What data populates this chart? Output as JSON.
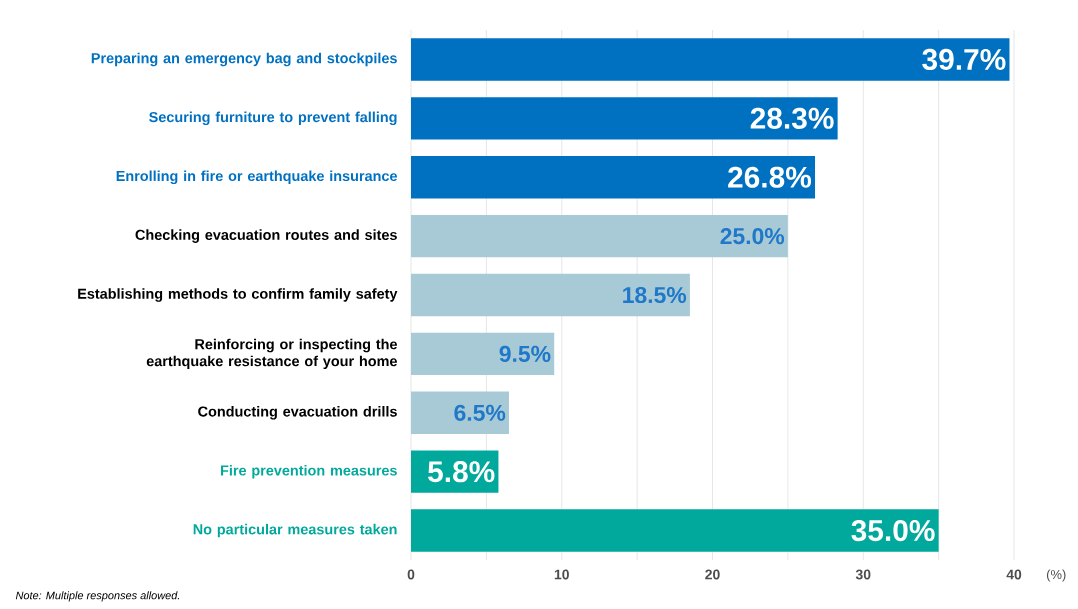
{
  "chart_data": {
    "type": "bar",
    "orientation": "horizontal",
    "xlabel": "(%)",
    "categories": [
      "Preparing an emergency bag and stockpiles",
      "Securing furniture to prevent falling",
      "Enrolling in fire or earthquake insurance",
      "Checking evacuation routes and sites",
      "Establishing methods to confirm family safety",
      "Reinforcing or inspecting the earthquake resistance of your home",
      "Conducting evacuation drills",
      "Fire prevention measures",
      "No particular measures taken"
    ],
    "values": [
      39.7,
      28.3,
      26.8,
      25.0,
      18.5,
      9.5,
      6.5,
      5.8,
      35.0
    ],
    "value_labels": [
      "39.7%",
      "28.3%",
      "26.8%",
      "25.0%",
      "18.5%",
      "9.5%",
      "6.5%",
      "5.8%",
      "35.0%"
    ],
    "colors": [
      "#0071c1",
      "#0071c1",
      "#0071c1",
      "#a8cad7",
      "#a8cad7",
      "#a8cad7",
      "#a8cad7",
      "#00a99b",
      "#00a99b"
    ],
    "xlim": [
      0,
      40
    ],
    "xticks": [
      0,
      {
        "value": 5,
        "label": null
      },
      10,
      {
        "value": 15,
        "label": null
      },
      20,
      {
        "value": 25,
        "label": null
      },
      30,
      {
        "value": 35,
        "label": null
      },
      40
    ],
    "grid": "x",
    "annotations": [
      "Note: Multiple responses allowed."
    ]
  }
}
